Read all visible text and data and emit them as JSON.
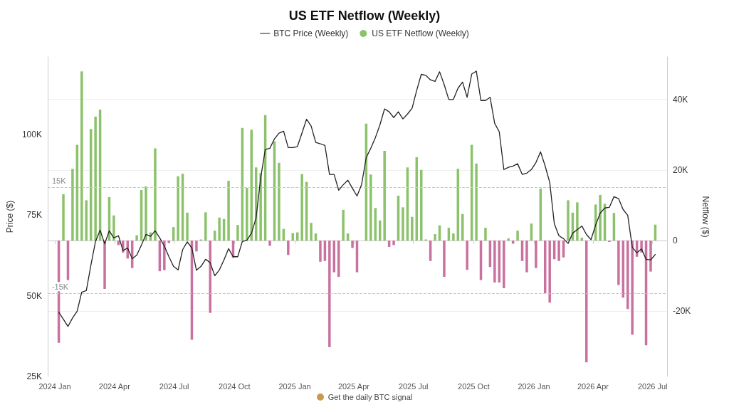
{
  "chart_data": {
    "type": "bar",
    "title": "US ETF Netflow (Weekly)",
    "ylabel": "Price ($)",
    "y2label": "Netflow ($)",
    "x": [
      "2024-01-07",
      "2024-01-14",
      "2024-01-21",
      "2024-01-28",
      "2024-02-04",
      "2024-02-11",
      "2024-02-18",
      "2024-02-25",
      "2024-03-03",
      "2024-03-10",
      "2024-03-17",
      "2024-03-24",
      "2024-03-31",
      "2024-04-07",
      "2024-04-14",
      "2024-04-21",
      "2024-04-28",
      "2024-05-05",
      "2024-05-12",
      "2024-05-19",
      "2024-05-26",
      "2024-06-02",
      "2024-06-09",
      "2024-06-16",
      "2024-06-23",
      "2024-06-30",
      "2024-07-07",
      "2024-07-14",
      "2024-07-21",
      "2024-07-28",
      "2024-08-04",
      "2024-08-11",
      "2024-08-18",
      "2024-08-25",
      "2024-09-01",
      "2024-09-08",
      "2024-09-15",
      "2024-09-22",
      "2024-09-29",
      "2024-10-06",
      "2024-10-13",
      "2024-10-20",
      "2024-10-27",
      "2024-11-03",
      "2024-11-10",
      "2024-11-17",
      "2024-11-24",
      "2024-12-01",
      "2024-12-08",
      "2024-12-15",
      "2024-12-22",
      "2024-12-29",
      "2025-01-05",
      "2025-01-12",
      "2025-01-19",
      "2025-01-26",
      "2025-02-02",
      "2025-02-09",
      "2025-02-16",
      "2025-02-23",
      "2025-03-02",
      "2025-03-09",
      "2025-03-16",
      "2025-03-23",
      "2025-03-30",
      "2025-04-06",
      "2025-04-13",
      "2025-04-20",
      "2025-04-27",
      "2025-05-04",
      "2025-05-11",
      "2025-05-18",
      "2025-05-25",
      "2025-06-01",
      "2025-06-08",
      "2025-06-15",
      "2025-06-22",
      "2025-06-29",
      "2025-07-06",
      "2025-07-13",
      "2025-07-20",
      "2025-07-27",
      "2025-08-03",
      "2025-08-10",
      "2025-08-17",
      "2025-08-24",
      "2025-08-31",
      "2025-09-07",
      "2025-09-14",
      "2025-09-21",
      "2025-09-28",
      "2025-10-05",
      "2025-10-12",
      "2025-10-19",
      "2025-10-26",
      "2025-11-02",
      "2025-11-09",
      "2025-11-16",
      "2025-11-23",
      "2025-11-30",
      "2025-12-07",
      "2025-12-14",
      "2025-12-21",
      "2025-12-28",
      "2026-01-04",
      "2026-01-11",
      "2026-01-18",
      "2026-01-25",
      "2026-02-01",
      "2026-02-08",
      "2026-02-15",
      "2026-02-22",
      "2026-03-01",
      "2026-03-08",
      "2026-03-15",
      "2026-03-22",
      "2026-03-29",
      "2026-04-05",
      "2026-04-12",
      "2026-04-19",
      "2026-04-26",
      "2026-05-03",
      "2026-05-10",
      "2026-05-17",
      "2026-05-24",
      "2026-05-31",
      "2026-06-07",
      "2026-06-14",
      "2026-06-21",
      "2026-06-28",
      "2026-07-05"
    ],
    "series": [
      {
        "name": "BTC Price (Weekly)",
        "type": "line",
        "color": "#222222",
        "marker": "none",
        "line_style": "solid",
        "values": [
          44900,
          42700,
          40500,
          43100,
          45200,
          51100,
          51600,
          59500,
          66800,
          70300,
          66100,
          70100,
          67900,
          68600,
          64000,
          64800,
          61500,
          62600,
          65700,
          69000,
          68400,
          70100,
          67900,
          65400,
          62100,
          59100,
          58000,
          64300,
          66700,
          64800,
          57900,
          59100,
          61300,
          60200,
          56200,
          58000,
          61100,
          64600,
          62100,
          62100,
          66800,
          67200,
          69400,
          74100,
          86500,
          95300,
          95700,
          98600,
          100400,
          101000,
          95900,
          95900,
          96200,
          100400,
          104700,
          102600,
          97500,
          97100,
          96600,
          87600,
          87600,
          82700,
          84400,
          85800,
          83300,
          80900,
          84500,
          92800,
          95700,
          99000,
          103000,
          107900,
          107000,
          105200,
          107000,
          104800,
          106300,
          108100,
          113600,
          118600,
          118300,
          116900,
          116400,
          119400,
          115400,
          110800,
          110800,
          114300,
          116200,
          111500,
          118700,
          119600,
          110500,
          110500,
          111500,
          103400,
          100800,
          89100,
          89800,
          90200,
          90900,
          87600,
          88000,
          89100,
          91300,
          94600,
          90200,
          85100,
          72300,
          68600,
          67700,
          66200,
          69400,
          70500,
          71600,
          69000,
          67400,
          71900,
          75600,
          77200,
          77400,
          80700,
          80100,
          76700,
          74900,
          65000,
          63300,
          64500,
          61300,
          61100,
          62800
        ]
      },
      {
        "name": "US ETF Netflow (Weekly)",
        "axis": "y2",
        "color": "#8cc26b",
        "values": [
          -29000,
          13100,
          -11200,
          20300,
          27100,
          47900,
          11400,
          31600,
          35100,
          37100,
          -13700,
          12300,
          7100,
          -1300,
          -3400,
          -5100,
          -7800,
          1500,
          14300,
          15300,
          2300,
          26100,
          -8700,
          -8400,
          -700,
          3800,
          18200,
          18900,
          7900,
          -28100,
          -3100,
          300,
          8000,
          -20500,
          2800,
          6500,
          6100,
          16900,
          -4900,
          4400,
          31900,
          14900,
          31400,
          20700,
          19100,
          35500,
          -1500,
          28100,
          22000,
          3300,
          -4100,
          2100,
          2300,
          18800,
          16600,
          5000,
          2000,
          -6000,
          -5800,
          -30200,
          -9000,
          -10300,
          8700,
          2000,
          -2100,
          -9000,
          0,
          33100,
          18700,
          9200,
          5700,
          25400,
          -1800,
          -1300,
          12700,
          9400,
          20700,
          6700,
          23600,
          20000,
          300,
          -5800,
          1800,
          4300,
          -10300,
          3600,
          2000,
          20300,
          7500,
          -8300,
          27100,
          21800,
          -11200,
          3600,
          -7500,
          -11900,
          -11900,
          -13500,
          600,
          -900,
          2800,
          -5800,
          -9000,
          4800,
          -7800,
          14700,
          -14900,
          -17600,
          -5300,
          -5800,
          -4800,
          11400,
          7900,
          10800,
          800,
          -34500,
          0,
          10200,
          12900,
          10400,
          -400,
          7800,
          -12600,
          -16200,
          -19400,
          -26700,
          -4600,
          -3400,
          -29700,
          -8800,
          4500
        ],
        "colors": [
          "#c9719f",
          "#8cc26b",
          "#c9719f",
          "#8cc26b",
          "#8cc26b",
          "#8cc26b",
          "#8cc26b",
          "#8cc26b",
          "#8cc26b",
          "#8cc26b",
          "#c9719f",
          "#8cc26b",
          "#8cc26b",
          "#c9719f",
          "#c9719f",
          "#c9719f",
          "#c9719f",
          "#8cc26b",
          "#8cc26b",
          "#8cc26b",
          "#8cc26b",
          "#8cc26b",
          "#c9719f",
          "#c9719f",
          "#c9719f",
          "#8cc26b",
          "#8cc26b",
          "#8cc26b",
          "#8cc26b",
          "#c9719f",
          "#c9719f",
          "#8cc26b",
          "#8cc26b",
          "#c9719f",
          "#8cc26b",
          "#8cc26b",
          "#8cc26b",
          "#8cc26b",
          "#c9719f",
          "#8cc26b",
          "#8cc26b",
          "#8cc26b",
          "#8cc26b",
          "#8cc26b",
          "#8cc26b",
          "#8cc26b",
          "#c9719f",
          "#8cc26b",
          "#8cc26b",
          "#8cc26b",
          "#c9719f",
          "#8cc26b",
          "#8cc26b",
          "#8cc26b",
          "#8cc26b",
          "#8cc26b",
          "#8cc26b",
          "#c9719f",
          "#c9719f",
          "#c9719f",
          "#c9719f",
          "#c9719f",
          "#8cc26b",
          "#8cc26b",
          "#c9719f",
          "#c9719f",
          "#8cc26b",
          "#8cc26b",
          "#8cc26b",
          "#8cc26b",
          "#8cc26b",
          "#8cc26b",
          "#c9719f",
          "#c9719f",
          "#8cc26b",
          "#8cc26b",
          "#8cc26b",
          "#8cc26b",
          "#8cc26b",
          "#8cc26b",
          "#8cc26b",
          "#c9719f",
          "#8cc26b",
          "#8cc26b",
          "#c9719f",
          "#8cc26b",
          "#8cc26b",
          "#8cc26b",
          "#8cc26b",
          "#c9719f",
          "#8cc26b",
          "#8cc26b",
          "#c9719f",
          "#8cc26b",
          "#c9719f",
          "#c9719f",
          "#c9719f",
          "#c9719f",
          "#8cc26b",
          "#c9719f",
          "#8cc26b",
          "#c9719f",
          "#c9719f",
          "#8cc26b",
          "#c9719f",
          "#8cc26b",
          "#c9719f",
          "#c9719f",
          "#c9719f",
          "#c9719f",
          "#c9719f",
          "#8cc26b",
          "#8cc26b",
          "#8cc26b",
          "#8cc26b",
          "#c9719f",
          "#8cc26b",
          "#8cc26b",
          "#8cc26b",
          "#8cc26b",
          "#c9719f",
          "#8cc26b",
          "#c9719f",
          "#c9719f",
          "#c9719f",
          "#c9719f",
          "#c9719f",
          "#c9719f",
          "#c9719f",
          "#c9719f",
          "#8cc26b"
        ]
      }
    ],
    "xlim": [
      "2023-12-21",
      "2026-07-23"
    ],
    "xticks": [
      {
        "value": "2024-01-01",
        "label": "2024 Jan"
      },
      {
        "value": "2024-04-01",
        "label": "2024 Apr"
      },
      {
        "value": "2024-07-01",
        "label": "2024 Jul"
      },
      {
        "value": "2024-10-01",
        "label": "2024 Oct"
      },
      {
        "value": "2025-01-01",
        "label": "2025 Jan"
      },
      {
        "value": "2025-04-01",
        "label": "2025 Apr"
      },
      {
        "value": "2025-07-01",
        "label": "2025 Jul"
      },
      {
        "value": "2025-10-01",
        "label": "2025 Oct"
      },
      {
        "value": "2026-01-01",
        "label": "2026 Jan"
      },
      {
        "value": "2026-04-01",
        "label": "2026 Apr"
      },
      {
        "value": "2026-07-01",
        "label": "2026 Jul"
      }
    ],
    "ylim": [
      25000,
      124000
    ],
    "yticks": [
      {
        "value": 25000,
        "label": "25K"
      },
      {
        "value": 50000,
        "label": "50K"
      },
      {
        "value": 75000,
        "label": "75K"
      },
      {
        "value": 100000,
        "label": "100K"
      }
    ],
    "y2lim": [
      -38500,
      52000
    ],
    "y2ticks": [
      {
        "value": -20000,
        "label": "-20K"
      },
      0,
      {
        "value": 20000,
        "label": "20K"
      },
      {
        "value": 40000,
        "label": "40K"
      }
    ],
    "ref_lines": [
      {
        "axis": "y2",
        "value": 15000,
        "label": "15K",
        "color": "#c8c8c8",
        "line_style": "dashed"
      },
      {
        "axis": "y2",
        "value": -15000,
        "label": "-15K",
        "color": "#c8c8c8",
        "line_style": "dashed"
      }
    ],
    "grid": "y",
    "legend": "top",
    "annotations": [
      "Get the daily BTC signal"
    ]
  }
}
